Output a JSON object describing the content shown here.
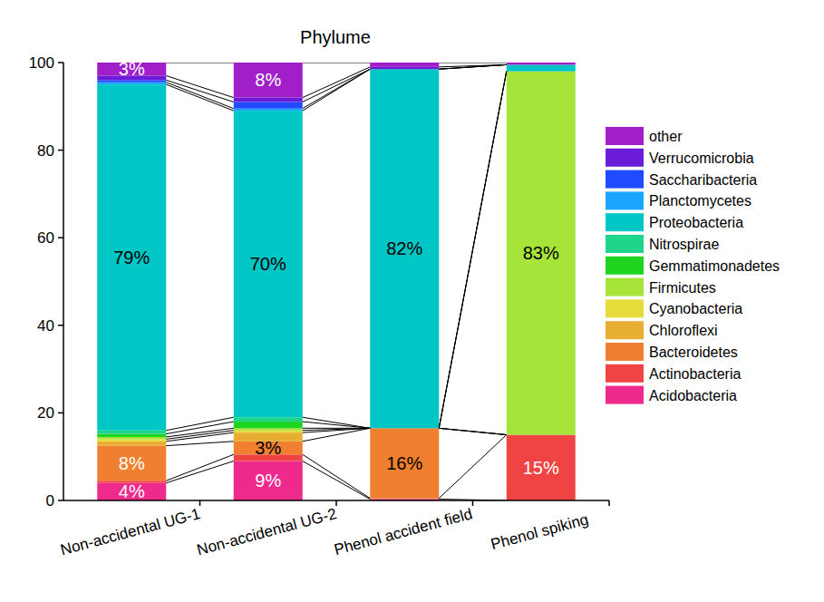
{
  "chart_data": {
    "type": "bar",
    "title": "Phylume",
    "stacked": true,
    "data_labels": true,
    "legend": "right",
    "categories": [
      "Non-accidental UG-1",
      "Non-accidental UG-2",
      "Phenol accident field",
      "Phenol spiking"
    ],
    "ylim": [
      0,
      100
    ],
    "yticks": [
      0,
      20,
      40,
      60,
      80,
      100
    ],
    "series": [
      {
        "name": "Acidobacteria",
        "color": "#ee2a8c",
        "values": [
          4,
          9,
          0.3,
          0
        ],
        "value_labels": [
          "4%",
          "9%",
          null,
          null
        ]
      },
      {
        "name": "Actinobacteria",
        "color": "#f04444",
        "values": [
          0.5,
          1.5,
          0.2,
          15
        ],
        "value_labels": [
          null,
          null,
          null,
          "15%"
        ]
      },
      {
        "name": "Bacteroidetes",
        "color": "#f08030",
        "values": [
          8,
          3,
          16,
          0
        ],
        "value_labels": [
          "8%",
          "3%",
          "16%",
          null
        ]
      },
      {
        "name": "Chloroflexi",
        "color": "#e8ae34",
        "values": [
          1,
          2,
          0,
          0
        ],
        "value_labels": [
          null,
          null,
          null,
          null
        ]
      },
      {
        "name": "Cyanobacteria",
        "color": "#e6dc3c",
        "values": [
          0.5,
          0.5,
          0,
          0
        ],
        "value_labels": [
          null,
          null,
          null,
          null
        ]
      },
      {
        "name": "Firmicutes",
        "color": "#a6e43a",
        "values": [
          0.5,
          0.5,
          0,
          83
        ],
        "value_labels": [
          null,
          null,
          null,
          "83%"
        ]
      },
      {
        "name": "Gemmatimonadetes",
        "color": "#1ed41e",
        "values": [
          0.7,
          1.5,
          0,
          0
        ],
        "value_labels": [
          null,
          null,
          null,
          null
        ]
      },
      {
        "name": "Nitrospirae",
        "color": "#1fd58c",
        "values": [
          0.8,
          1,
          0,
          0
        ],
        "value_labels": [
          null,
          null,
          null,
          null
        ]
      },
      {
        "name": "Proteobacteria",
        "color": "#00c6c6",
        "values": [
          79,
          70,
          82,
          1.5
        ],
        "value_labels": [
          "79%",
          "70%",
          "82%",
          null
        ]
      },
      {
        "name": "Planctomycetes",
        "color": "#1aa6ff",
        "values": [
          0.5,
          0.5,
          0,
          0
        ],
        "value_labels": [
          null,
          null,
          null,
          null
        ]
      },
      {
        "name": "Saccharibacteria",
        "color": "#1f4cff",
        "values": [
          0.5,
          1.5,
          0,
          0
        ],
        "value_labels": [
          null,
          null,
          null,
          null
        ]
      },
      {
        "name": "Verrucomicrobia",
        "color": "#6a1cd8",
        "values": [
          1,
          1,
          0.5,
          0
        ],
        "value_labels": [
          null,
          null,
          null,
          null
        ]
      },
      {
        "name": "other",
        "color": "#a01fc8",
        "values": [
          3,
          8,
          1,
          0.5
        ],
        "value_labels": [
          "3%",
          "8%",
          null,
          null
        ]
      }
    ]
  }
}
